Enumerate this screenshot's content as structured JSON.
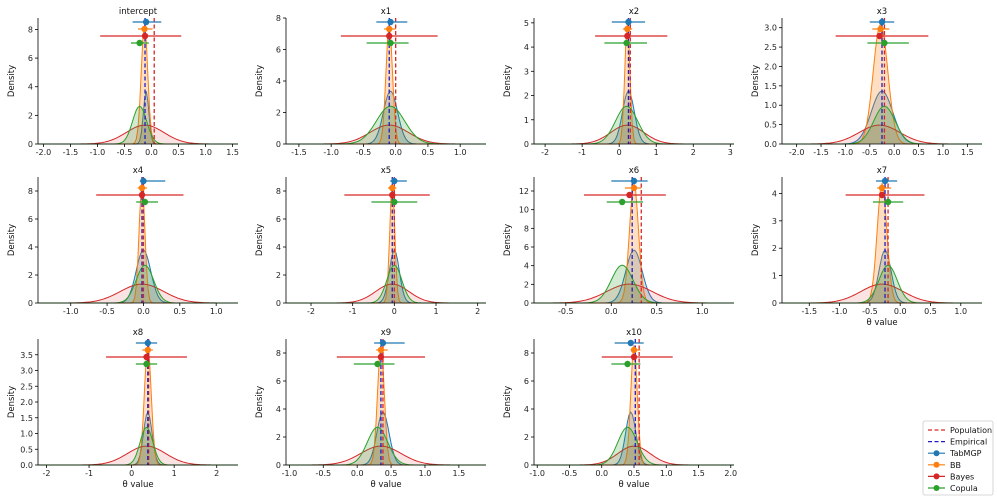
{
  "figure": {
    "ylabel": "Density",
    "xlabel": "θ value"
  },
  "legend": {
    "placement": "bottom-right",
    "entries": [
      {
        "label": "Population",
        "color": "#d62728",
        "style": "dashed"
      },
      {
        "label": "Empirical",
        "color": "#1f1fbf",
        "style": "dashed"
      },
      {
        "label": "TabMGP",
        "color": "#1f77b4",
        "style": "marker"
      },
      {
        "label": "BB",
        "color": "#ff7f0e",
        "style": "marker"
      },
      {
        "label": "Bayes",
        "color": "#d62728",
        "style": "marker"
      },
      {
        "label": "Copula",
        "color": "#2ca02c",
        "style": "marker"
      }
    ]
  },
  "colors": {
    "TabMGP": "#1f77b4",
    "BB": "#ff7f0e",
    "Bayes": "#d62728",
    "Copula": "#2ca02c",
    "Population": "#d62728",
    "Empirical": "#1f1fbf"
  },
  "chart_data": [
    {
      "title": "intercept",
      "type": "density",
      "xlim": [
        -2.1,
        1.6
      ],
      "ylim": [
        0,
        8.8
      ],
      "xticks": [
        "-2.0",
        "-1.5",
        "-1.0",
        "-0.5",
        "0.0",
        "0.5",
        "1.0",
        "1.5"
      ],
      "yticks": [
        "0",
        "2",
        "4",
        "6",
        "8"
      ],
      "xlabel": "",
      "population": 0.05,
      "empirical": -0.12,
      "methods": {
        "TabMGP": {
          "mean": -0.1,
          "ci": [
            -0.35,
            0.18
          ],
          "sd": 0.05
        },
        "BB": {
          "mean": -0.13,
          "ci": [
            -0.25,
            0.02
          ],
          "sd": 0.06
        },
        "Bayes": {
          "mean": -0.12,
          "ci": [
            -0.95,
            0.55
          ],
          "sd": 0.35
        },
        "Copula": {
          "mean": -0.22,
          "ci": [
            -0.38,
            -0.05
          ],
          "sd": 0.13
        }
      }
    },
    {
      "title": "x1",
      "type": "density",
      "xlim": [
        -1.7,
        1.4
      ],
      "ylim": [
        0,
        8.0
      ],
      "xticks": [
        "-1.5",
        "-1.0",
        "-0.5",
        "0.0",
        "0.5",
        "1.0"
      ],
      "yticks": [
        "0",
        "2",
        "4",
        "6",
        "8"
      ],
      "xlabel": "",
      "population": 0.0,
      "empirical": -0.1,
      "methods": {
        "TabMGP": {
          "mean": -0.08,
          "ci": [
            -0.3,
            0.18
          ],
          "sd": 0.11
        },
        "BB": {
          "mean": -0.1,
          "ci": [
            -0.18,
            0.0
          ],
          "sd": 0.05
        },
        "Bayes": {
          "mean": -0.1,
          "ci": [
            -0.85,
            0.65
          ],
          "sd": 0.3
        },
        "Copula": {
          "mean": -0.08,
          "ci": [
            -0.45,
            0.2
          ],
          "sd": 0.22
        }
      }
    },
    {
      "title": "x2",
      "type": "density",
      "xlim": [
        -2.3,
        3.1
      ],
      "ylim": [
        0,
        5.2
      ],
      "xticks": [
        "-2",
        "-1",
        "0",
        "1",
        "2",
        "3"
      ],
      "yticks": [
        "0",
        "1",
        "2",
        "3",
        "4",
        "5"
      ],
      "xlabel": "",
      "population": 0.3,
      "empirical": 0.25,
      "methods": {
        "TabMGP": {
          "mean": 0.25,
          "ci": [
            -0.2,
            0.7
          ],
          "sd": 0.16
        },
        "BB": {
          "mean": 0.22,
          "ci": [
            0.1,
            0.35
          ],
          "sd": 0.07
        },
        "Bayes": {
          "mean": 0.22,
          "ci": [
            -0.65,
            1.3
          ],
          "sd": 0.45
        },
        "Copula": {
          "mean": 0.2,
          "ci": [
            -0.4,
            0.75
          ],
          "sd": 0.3
        }
      }
    },
    {
      "title": "x3",
      "type": "density",
      "xlim": [
        -2.3,
        1.8
      ],
      "ylim": [
        0,
        3.25
      ],
      "xticks": [
        "-2.0",
        "-1.5",
        "-1.0",
        "-0.5",
        "0.0",
        "0.5",
        "1.0",
        "1.5"
      ],
      "yticks": [
        "0.0",
        "0.5",
        "1.0",
        "1.5",
        "2.0",
        "2.5",
        "3.0"
      ],
      "xlabel": "",
      "population": -0.2,
      "empirical": -0.25,
      "methods": {
        "TabMGP": {
          "mean": -0.25,
          "ci": [
            -0.5,
            0.0
          ],
          "sd": 0.22
        },
        "BB": {
          "mean": -0.28,
          "ci": [
            -0.45,
            -0.1
          ],
          "sd": 0.15
        },
        "Bayes": {
          "mean": -0.3,
          "ci": [
            -1.2,
            0.7
          ],
          "sd": 0.42
        },
        "Copula": {
          "mean": -0.2,
          "ci": [
            -0.55,
            0.3
          ],
          "sd": 0.22
        }
      }
    },
    {
      "title": "x4",
      "type": "density",
      "xlim": [
        -1.45,
        1.3
      ],
      "ylim": [
        0,
        9.0
      ],
      "xticks": [
        "-1.0",
        "-0.5",
        "0.0",
        "0.5",
        "1.0"
      ],
      "yticks": [
        "0",
        "2",
        "4",
        "6",
        "8"
      ],
      "xlabel": "",
      "population": 0.0,
      "empirical": -0.02,
      "methods": {
        "TabMGP": {
          "mean": 0.0,
          "ci": [
            -0.05,
            0.3
          ],
          "sd": 0.1
        },
        "BB": {
          "mean": -0.02,
          "ci": [
            -0.08,
            0.05
          ],
          "sd": 0.04
        },
        "Bayes": {
          "mean": -0.02,
          "ci": [
            -0.65,
            0.55
          ],
          "sd": 0.3
        },
        "Copula": {
          "mean": 0.02,
          "ci": [
            -0.1,
            0.2
          ],
          "sd": 0.12
        }
      }
    },
    {
      "title": "x5",
      "type": "density",
      "xlim": [
        -2.6,
        2.2
      ],
      "ylim": [
        0,
        9.0
      ],
      "xticks": [
        "-2",
        "-1",
        "0",
        "1",
        "2"
      ],
      "yticks": [
        "0",
        "2",
        "4",
        "6",
        "8"
      ],
      "xlabel": "",
      "population": 0.0,
      "empirical": -0.05,
      "methods": {
        "TabMGP": {
          "mean": 0.0,
          "ci": [
            -0.1,
            0.3
          ],
          "sd": 0.12
        },
        "BB": {
          "mean": -0.05,
          "ci": [
            -0.15,
            0.05
          ],
          "sd": 0.06
        },
        "Bayes": {
          "mean": -0.05,
          "ci": [
            -1.2,
            0.85
          ],
          "sd": 0.4
        },
        "Copula": {
          "mean": 0.0,
          "ci": [
            -0.55,
            0.55
          ],
          "sd": 0.18
        }
      }
    },
    {
      "title": "x6",
      "type": "density",
      "xlim": [
        -0.85,
        1.35
      ],
      "ylim": [
        0,
        13.5
      ],
      "xticks": [
        "-0.5",
        "0.0",
        "0.5",
        "1.0"
      ],
      "yticks": [
        "0",
        "2",
        "4",
        "6",
        "8",
        "10",
        "12"
      ],
      "xlabel": "",
      "population": 0.33,
      "empirical": 0.23,
      "methods": {
        "TabMGP": {
          "mean": 0.25,
          "ci": [
            0.0,
            0.4
          ],
          "sd": 0.09
        },
        "BB": {
          "mean": 0.25,
          "ci": [
            0.15,
            0.33
          ],
          "sd": 0.05
        },
        "Bayes": {
          "mean": 0.2,
          "ci": [
            -0.3,
            0.6
          ],
          "sd": 0.25
        },
        "Copula": {
          "mean": 0.12,
          "ci": [
            -0.05,
            0.35
          ],
          "sd": 0.12
        }
      }
    },
    {
      "title": "x7",
      "type": "density",
      "xlim": [
        -1.95,
        1.35
      ],
      "ylim": [
        0,
        4.6
      ],
      "xticks": [
        "-1.5",
        "-1.0",
        "-0.5",
        "0.0",
        "0.5",
        "1.0"
      ],
      "yticks": [
        "0",
        "1",
        "2",
        "3",
        "4"
      ],
      "xlabel": "θ value",
      "population": -0.2,
      "empirical": -0.25,
      "methods": {
        "TabMGP": {
          "mean": -0.25,
          "ci": [
            -0.4,
            -0.05
          ],
          "sd": 0.1
        },
        "BB": {
          "mean": -0.3,
          "ci": [
            -0.38,
            -0.15
          ],
          "sd": 0.08
        },
        "Bayes": {
          "mean": -0.3,
          "ci": [
            -0.9,
            0.4
          ],
          "sd": 0.35
        },
        "Copula": {
          "mean": -0.2,
          "ci": [
            -0.45,
            0.05
          ],
          "sd": 0.15
        }
      }
    },
    {
      "title": "x8",
      "type": "density",
      "xlim": [
        -2.2,
        2.5
      ],
      "ylim": [
        0,
        4.0
      ],
      "xticks": [
        "-2",
        "-1",
        "0",
        "1",
        "2"
      ],
      "yticks": [
        "0.0",
        "0.5",
        "1.0",
        "1.5",
        "2.0",
        "2.5",
        "3.0",
        "3.5"
      ],
      "xlabel": "θ value",
      "population": 0.4,
      "empirical": 0.38,
      "methods": {
        "TabMGP": {
          "mean": 0.38,
          "ci": [
            0.1,
            0.6
          ],
          "sd": 0.1
        },
        "BB": {
          "mean": 0.38,
          "ci": [
            0.25,
            0.5
          ],
          "sd": 0.08
        },
        "Bayes": {
          "mean": 0.35,
          "ci": [
            -0.6,
            1.3
          ],
          "sd": 0.45
        },
        "Copula": {
          "mean": 0.35,
          "ci": [
            0.1,
            0.6
          ],
          "sd": 0.15
        }
      }
    },
    {
      "title": "x9",
      "type": "density",
      "xlim": [
        -1.05,
        1.9
      ],
      "ylim": [
        0,
        9.0
      ],
      "xticks": [
        "-1.0",
        "-0.5",
        "0.0",
        "0.5",
        "1.0",
        "1.5"
      ],
      "yticks": [
        "0",
        "2",
        "4",
        "6",
        "8"
      ],
      "xlabel": "θ value",
      "population": 0.38,
      "empirical": 0.35,
      "methods": {
        "TabMGP": {
          "mean": 0.38,
          "ci": [
            0.25,
            0.7
          ],
          "sd": 0.09
        },
        "BB": {
          "mean": 0.35,
          "ci": [
            0.28,
            0.45
          ],
          "sd": 0.05
        },
        "Bayes": {
          "mean": 0.35,
          "ci": [
            -0.3,
            1.0
          ],
          "sd": 0.3
        },
        "Copula": {
          "mean": 0.3,
          "ci": [
            -0.05,
            0.55
          ],
          "sd": 0.15
        }
      }
    },
    {
      "title": "x10",
      "type": "density",
      "xlim": [
        -1.05,
        2.05
      ],
      "ylim": [
        0,
        9.0
      ],
      "xticks": [
        "-1.0",
        "-0.5",
        "0.0",
        "0.5",
        "1.0",
        "1.5",
        "2.0"
      ],
      "yticks": [
        "0",
        "2",
        "4",
        "6",
        "8"
      ],
      "xlabel": "θ value",
      "population": 0.58,
      "empirical": 0.52,
      "methods": {
        "TabMGP": {
          "mean": 0.45,
          "ci": [
            0.2,
            0.65
          ],
          "sd": 0.08
        },
        "BB": {
          "mean": 0.5,
          "ci": [
            0.45,
            0.6
          ],
          "sd": 0.05
        },
        "Bayes": {
          "mean": 0.5,
          "ci": [
            0.0,
            1.1
          ],
          "sd": 0.25
        },
        "Copula": {
          "mean": 0.4,
          "ci": [
            0.15,
            0.6
          ],
          "sd": 0.15
        }
      }
    }
  ]
}
